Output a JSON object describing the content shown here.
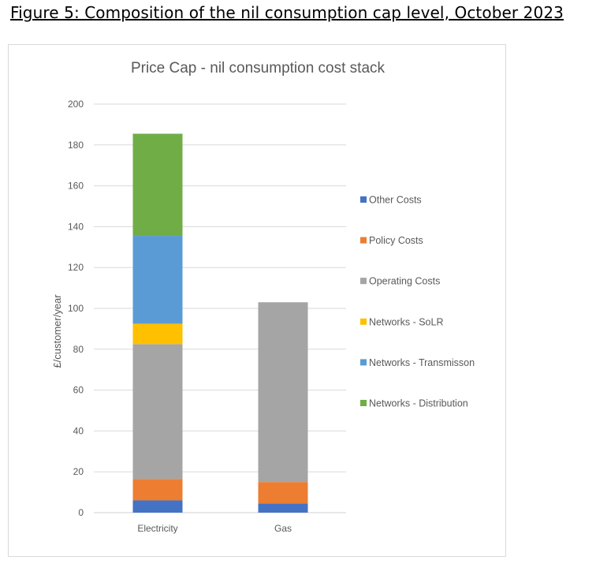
{
  "figure_caption": "Figure 5: Composition of the nil consumption cap level, October 2023",
  "chart_data": {
    "type": "bar",
    "stacked": true,
    "title": "Price Cap - nil consumption cost stack",
    "xlabel": "",
    "ylabel": "£/customer/year",
    "categories": [
      "Electricity",
      "Gas"
    ],
    "ylim": [
      0,
      200
    ],
    "yticks": [
      0,
      20,
      40,
      60,
      80,
      100,
      120,
      140,
      160,
      180,
      200
    ],
    "grid": true,
    "legend_position": "right",
    "series": [
      {
        "name": "Other Costs",
        "color": "#4472c4",
        "values": [
          6,
          4.5
        ]
      },
      {
        "name": "Policy Costs",
        "color": "#ed7d31",
        "values": [
          10.5,
          10.5
        ]
      },
      {
        "name": "Operating Costs",
        "color": "#a5a5a5",
        "values": [
          66,
          88
        ]
      },
      {
        "name": "Networks - SoLR",
        "color": "#ffc000",
        "values": [
          10,
          0
        ]
      },
      {
        "name": "Networks - Transmisson",
        "color": "#5b9bd5",
        "values": [
          43,
          0
        ]
      },
      {
        "name": "Networks - Distribution",
        "color": "#70ad47",
        "values": [
          50,
          0
        ]
      }
    ]
  }
}
